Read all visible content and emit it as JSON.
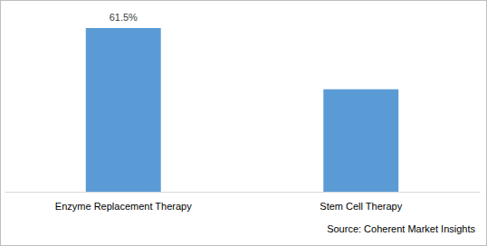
{
  "chart_data": {
    "type": "bar",
    "categories": [
      "Enzyme Replacement Therapy",
      "Stem Cell Therapy"
    ],
    "values": [
      61.5,
      38.5
    ],
    "value_labels": [
      "61.5%",
      null
    ],
    "data_labels": true,
    "color": "#5b9bd5",
    "tick_labels": "x",
    "grid": false,
    "annotations": [
      "Source: Coherent Market Insights"
    ]
  }
}
